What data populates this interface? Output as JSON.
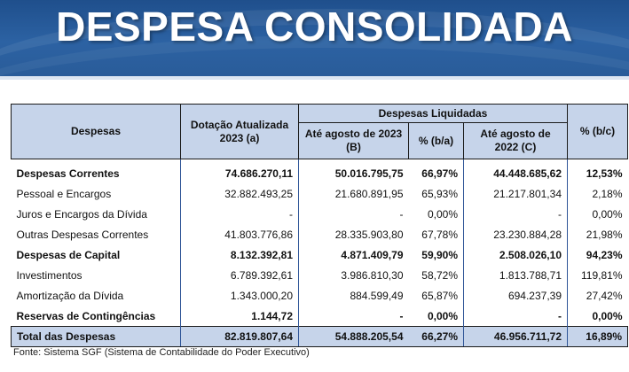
{
  "header": {
    "title": "DESPESA CONSOLIDADA"
  },
  "table": {
    "head": {
      "despesas": "Despesas",
      "dotacao": "Dotação Atualizada 2023 (a)",
      "liquidadas": "Despesas Liquidadas",
      "ate_2023": "Até agosto de 2023 (B)",
      "pct_ba": "% (b/a)",
      "ate_2022": "Até agosto de 2022 (C)",
      "pct_bc": "% (b/c)"
    },
    "rows": [
      {
        "label": "Despesas Correntes",
        "dotacao": "74.686.270,11",
        "ate2023": "50.016.795,75",
        "pct_ba": "66,97%",
        "ate2022": "44.448.685,62",
        "pct_bc": "12,53%"
      },
      {
        "label": "Pessoal e Encargos",
        "dotacao": "32.882.493,25",
        "ate2023": "21.680.891,95",
        "pct_ba": "65,93%",
        "ate2022": "21.217.801,34",
        "pct_bc": "2,18%"
      },
      {
        "label": "Juros e Encargos da Dívida",
        "dotacao": "-",
        "ate2023": "-",
        "pct_ba": "0,00%",
        "ate2022": "-",
        "pct_bc": "0,00%"
      },
      {
        "label": "Outras Despesas Correntes",
        "dotacao": "41.803.776,86",
        "ate2023": "28.335.903,80",
        "pct_ba": "67,78%",
        "ate2022": "23.230.884,28",
        "pct_bc": "21,98%"
      },
      {
        "label": "Despesas de Capital",
        "dotacao": "8.132.392,81",
        "ate2023": "4.871.409,79",
        "pct_ba": "59,90%",
        "ate2022": "2.508.026,10",
        "pct_bc": "94,23%"
      },
      {
        "label": "Investimentos",
        "dotacao": "6.789.392,61",
        "ate2023": "3.986.810,30",
        "pct_ba": "58,72%",
        "ate2022": "1.813.788,71",
        "pct_bc": "119,81%"
      },
      {
        "label": "Amortização da Dívida",
        "dotacao": "1.343.000,20",
        "ate2023": "884.599,49",
        "pct_ba": "65,87%",
        "ate2022": "694.237,39",
        "pct_bc": "27,42%"
      },
      {
        "label": "Reservas de Contingências",
        "dotacao": "1.144,72",
        "ate2023": "-",
        "pct_ba": "0,00%",
        "ate2022": "-",
        "pct_bc": "0,00%"
      }
    ],
    "total": {
      "label": "Total das Despesas",
      "dotacao": "82.819.807,64",
      "ate2023": "54.888.205,54",
      "pct_ba": "66,27%",
      "ate2022": "46.956.711,72",
      "pct_bc": "16,89%"
    }
  },
  "footer": {
    "source": "Fonte: Sistema SGF (Sistema de Contabilidade do Poder Executivo)"
  }
}
